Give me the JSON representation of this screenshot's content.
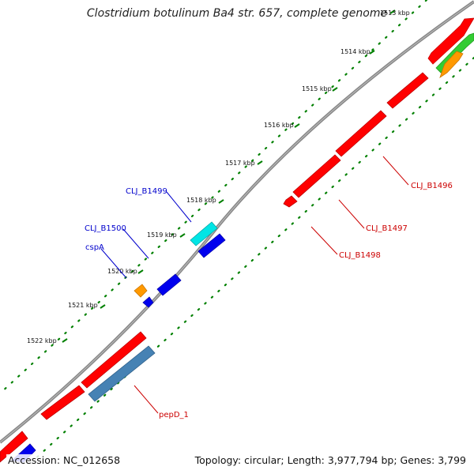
{
  "title": "Clostridium botulinum Ba4 str. 657, complete genome",
  "footer": {
    "accession": "Accession: NC_012658",
    "summary": "Topology: circular; Length: 3,977,794 bp; Genes: 3,799"
  },
  "ticks": [
    "1513 kbp",
    "1514 kbp",
    "1515 kbp",
    "1516 kbp",
    "1517 kbp",
    "1518 kbp",
    "1519 kbp",
    "1520 kbp",
    "1521 kbp",
    "1522 kbp"
  ],
  "gene_labels": {
    "outer": [
      "CLJ_B1499",
      "CLJ_B1500",
      "cspA"
    ],
    "inner": [
      "CLJ_B1496",
      "CLJ_B1497",
      "CLJ_B1498",
      "pepD_1"
    ]
  },
  "colors": {
    "cds_red": "#ff0000",
    "cds_blue": "#0000ee",
    "cds_cyan": "#00e5e5",
    "cds_orange": "#ff8c00",
    "cds_green": "#33cc33",
    "cds_steelblue": "#4682b4",
    "backbone": "#808080",
    "tick_dots": "#008000",
    "label_outer": "#0000cc",
    "label_inner": "#cc0000"
  }
}
